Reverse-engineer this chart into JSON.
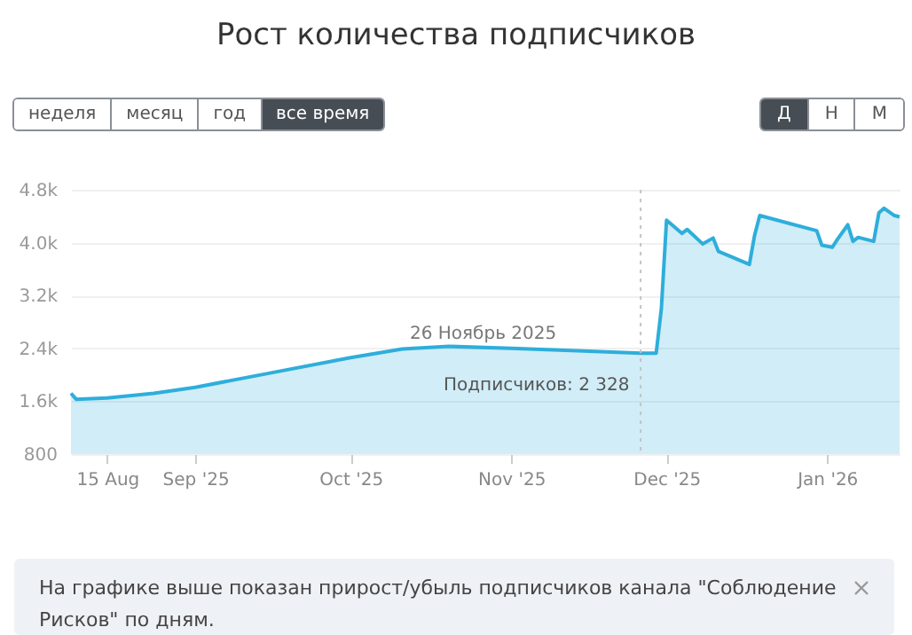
{
  "chart_data": {
    "type": "area",
    "title": "Рост количества подписчиков",
    "x": [
      "2025-08-08",
      "2025-08-09",
      "2025-08-15",
      "2025-08-24",
      "2025-09-01",
      "2025-09-15",
      "2025-10-01",
      "2025-10-11",
      "2025-10-20",
      "2025-11-01",
      "2025-11-15",
      "2025-11-26",
      "2025-11-29",
      "2025-11-30",
      "2025-12-01",
      "2025-12-04",
      "2025-12-05",
      "2025-12-08",
      "2025-12-10",
      "2025-12-11",
      "2025-12-17",
      "2025-12-18",
      "2025-12-19",
      "2025-12-30",
      "2025-12-31",
      "2026-01-02",
      "2026-01-03",
      "2026-01-05",
      "2026-01-06",
      "2026-01-07",
      "2026-01-10",
      "2026-01-11",
      "2026-01-12",
      "2026-01-14",
      "2026-01-15"
    ],
    "series": [
      {
        "name": null,
        "color": "#2eaedb",
        "values": [
          1720,
          1630,
          1650,
          1720,
          1810,
          2020,
          2260,
          2390,
          2430,
          2400,
          2360,
          2328,
          2328,
          3000,
          4340,
          4140,
          4200,
          3980,
          4070,
          3870,
          3670,
          4110,
          4410,
          4180,
          3960,
          3930,
          4050,
          4270,
          4020,
          4080,
          4020,
          4450,
          4520,
          4410,
          4390
        ]
      }
    ],
    "xlim": [
      "2025-08-08",
      "2026-01-15"
    ],
    "xticks": [
      {
        "value": "2025-08-15",
        "label": "15 Aug"
      },
      {
        "value": "2025-09-01",
        "label": "Sep '25"
      },
      {
        "value": "2025-10-01",
        "label": "Oct '25"
      },
      {
        "value": "2025-11-01",
        "label": "Nov '25"
      },
      {
        "value": "2025-12-01",
        "label": "Dec '25"
      },
      {
        "value": "2026-01-01",
        "label": "Jan '26"
      }
    ],
    "ylim": [
      800,
      4800
    ],
    "yticks": [
      800,
      {
        "value": 1600,
        "label": "1.6k"
      },
      {
        "value": 2400,
        "label": "2.4k"
      },
      {
        "value": 3200,
        "label": "3.2k"
      },
      {
        "value": 4000,
        "label": "4.0k"
      },
      {
        "value": 4800,
        "label": "4.8k"
      }
    ],
    "grid": "y",
    "ref_lines": [
      {
        "axis": "x",
        "value": "2025-11-26",
        "color": "#c0c4c8",
        "line_style": "dotted"
      }
    ],
    "annotations": [
      "неделя",
      "месяц",
      "год",
      "все время",
      "Д",
      "Н",
      "М",
      "26 Ноябрь 2025",
      "Подписчиков: 2 328",
      "На графике выше показан прирост/убыль подписчиков канала \"Соблюдение Рисков\" по дням."
    ]
  }
}
